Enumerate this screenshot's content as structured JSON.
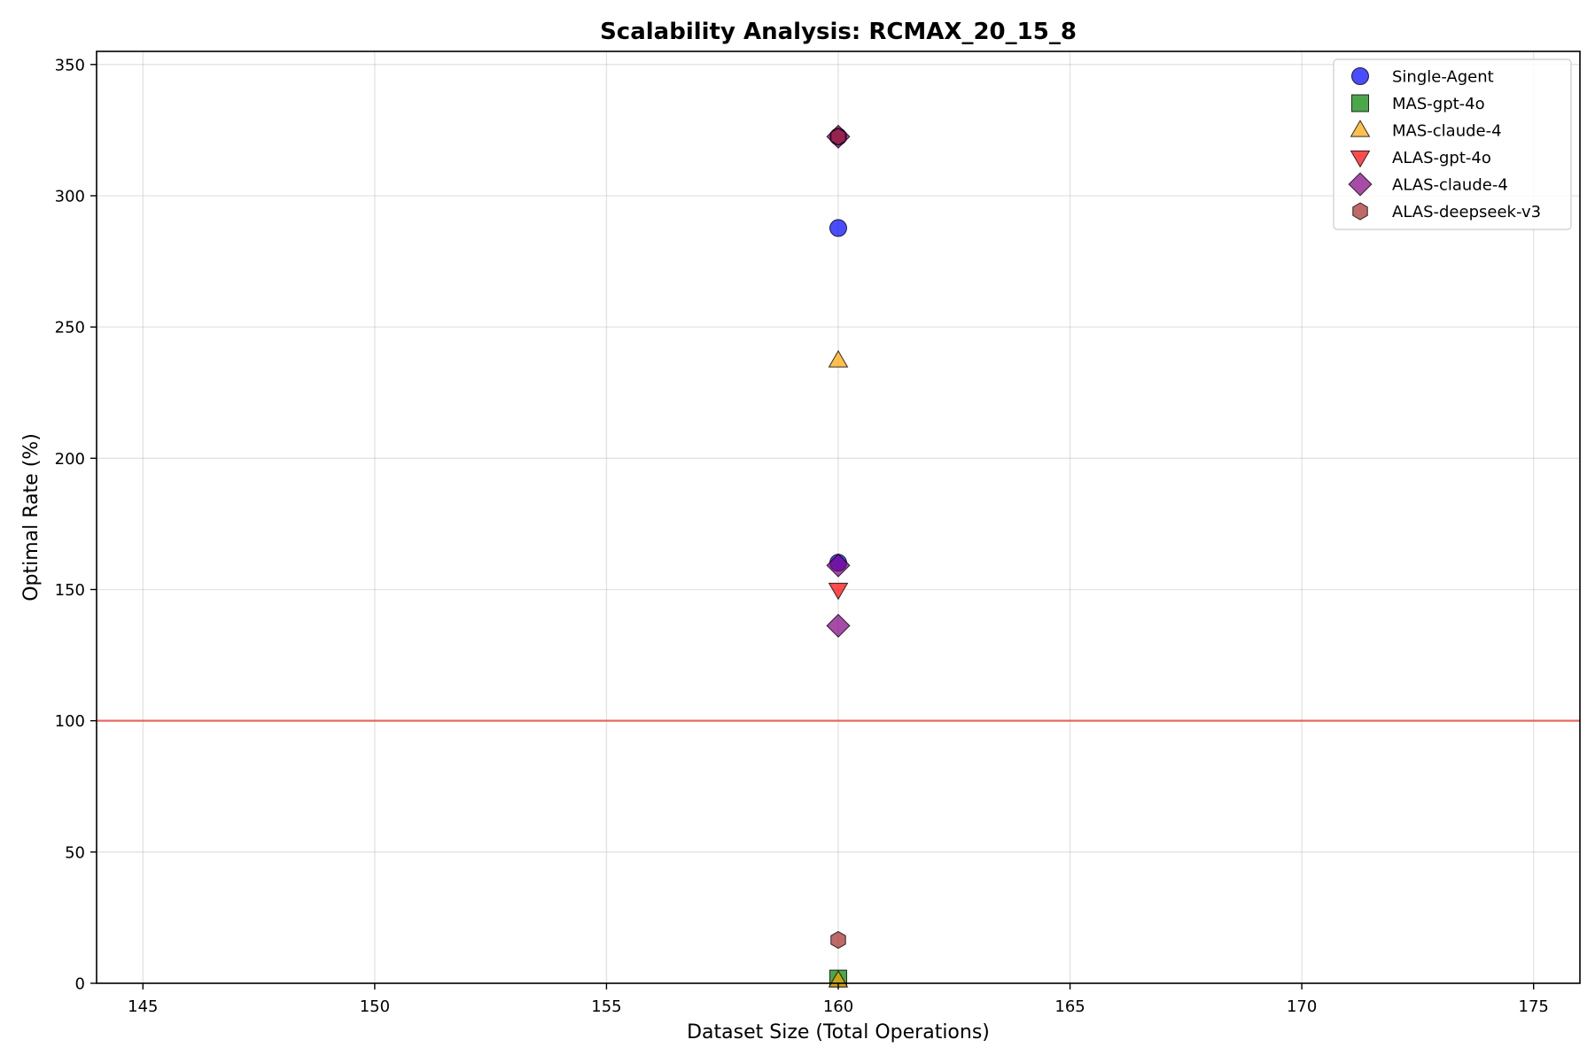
{
  "chart_data": {
    "type": "scatter",
    "title": "Scalability Analysis: RCMAX_20_15_8",
    "xlabel": "Dataset Size (Total Operations)",
    "ylabel": "Optimal Rate (%)",
    "xlim": [
      144,
      176
    ],
    "ylim": [
      0,
      355
    ],
    "xticks": [
      145,
      150,
      155,
      160,
      165,
      170,
      175
    ],
    "yticks": [
      0,
      50,
      100,
      150,
      200,
      250,
      300,
      350
    ],
    "grid": true,
    "legend_position": "top-right",
    "reference_line": {
      "y": 100,
      "color": "#e8524a"
    },
    "series": [
      {
        "name": "Single-Agent",
        "marker": "circle",
        "color": "#0000ff",
        "points": [
          [
            160,
            322.5
          ],
          [
            160,
            287.7
          ],
          [
            160,
            160.2
          ]
        ]
      },
      {
        "name": "MAS-gpt-4o",
        "marker": "square",
        "color": "#008000",
        "points": [
          [
            160,
            1.8
          ]
        ]
      },
      {
        "name": "MAS-claude-4",
        "marker": "triangle-up",
        "color": "#ffa500",
        "points": [
          [
            160,
            237.2
          ],
          [
            160,
            1.0
          ]
        ]
      },
      {
        "name": "ALAS-gpt-4o",
        "marker": "triangle-down",
        "color": "#ff0000",
        "points": [
          [
            160,
            150.0
          ]
        ]
      },
      {
        "name": "ALAS-claude-4",
        "marker": "diamond",
        "color": "#800080",
        "points": [
          [
            160,
            322.5
          ],
          [
            160,
            159.2
          ],
          [
            160,
            136.2
          ]
        ]
      },
      {
        "name": "ALAS-deepseek-v3",
        "marker": "hexagon",
        "color": "#a52a2a",
        "points": [
          [
            160,
            322.5
          ],
          [
            160,
            16.5
          ]
        ]
      }
    ]
  }
}
